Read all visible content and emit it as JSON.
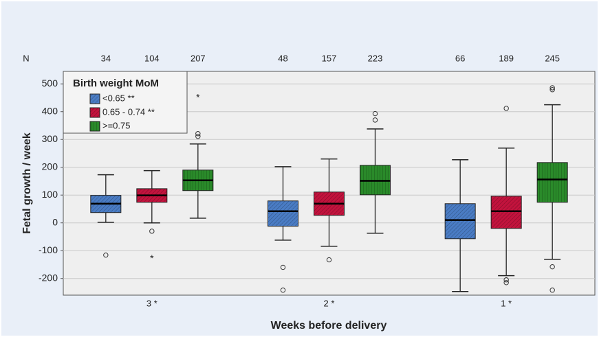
{
  "chart_data": {
    "type": "box",
    "y_label": "Fetal growth / week",
    "x_label": "Weeks before delivery",
    "n_label": "N",
    "legend_title": "Birth weight MoM",
    "legend_position": "upper left",
    "grid": true,
    "categories": [
      "3 *",
      "2 *",
      "1 *"
    ],
    "ylim": [
      -260,
      545
    ],
    "yticks": [
      -200,
      -100,
      0,
      100,
      200,
      300,
      400,
      500
    ],
    "series": [
      {
        "name": "<0.65 **",
        "color": "#4a7cc4",
        "n": [
          34,
          48,
          66
        ],
        "boxes": [
          {
            "whisker_low": 2,
            "q1": 37,
            "median": 69,
            "q3": 99,
            "whisker_high": 173,
            "outliers": [
              -116
            ],
            "extremes": []
          },
          {
            "whisker_low": -62,
            "q1": -12,
            "median": 42,
            "q3": 79,
            "whisker_high": 202,
            "outliers": [
              -160,
              -242
            ],
            "extremes": []
          },
          {
            "whisker_low": -247,
            "q1": -57,
            "median": 10,
            "q3": 69,
            "whisker_high": 227,
            "outliers": [],
            "extremes": []
          }
        ]
      },
      {
        "name": "0.65 - 0.74 **",
        "color": "#c2133d",
        "n": [
          104,
          157,
          189
        ],
        "boxes": [
          {
            "whisker_low": 0,
            "q1": 74,
            "median": 99,
            "q3": 123,
            "whisker_high": 188,
            "outliers": [
              -30
            ],
            "extremes": [
              -123
            ]
          },
          {
            "whisker_low": -84,
            "q1": 27,
            "median": 69,
            "q3": 111,
            "whisker_high": 230,
            "outliers": [
              -133
            ],
            "extremes": []
          },
          {
            "whisker_low": -190,
            "q1": -20,
            "median": 42,
            "q3": 96,
            "whisker_high": 269,
            "outliers": [
              412,
              -205,
              -215
            ],
            "extremes": []
          }
        ]
      },
      {
        "name": ">=0.75",
        "color": "#2a8a2a",
        "n": [
          207,
          223,
          245
        ],
        "boxes": [
          {
            "whisker_low": 17,
            "q1": 116,
            "median": 153,
            "q3": 190,
            "whisker_high": 284,
            "outliers": [
              321,
              311
            ],
            "extremes": [
              457
            ]
          },
          {
            "whisker_low": -37,
            "q1": 101,
            "median": 151,
            "q3": 207,
            "whisker_high": 338,
            "outliers": [
              393,
              370
            ],
            "extremes": []
          },
          {
            "whisker_low": -131,
            "q1": 74,
            "median": 156,
            "q3": 217,
            "whisker_high": 425,
            "outliers": [
              486,
              479,
              -158,
              -242
            ],
            "extremes": []
          }
        ]
      }
    ]
  }
}
